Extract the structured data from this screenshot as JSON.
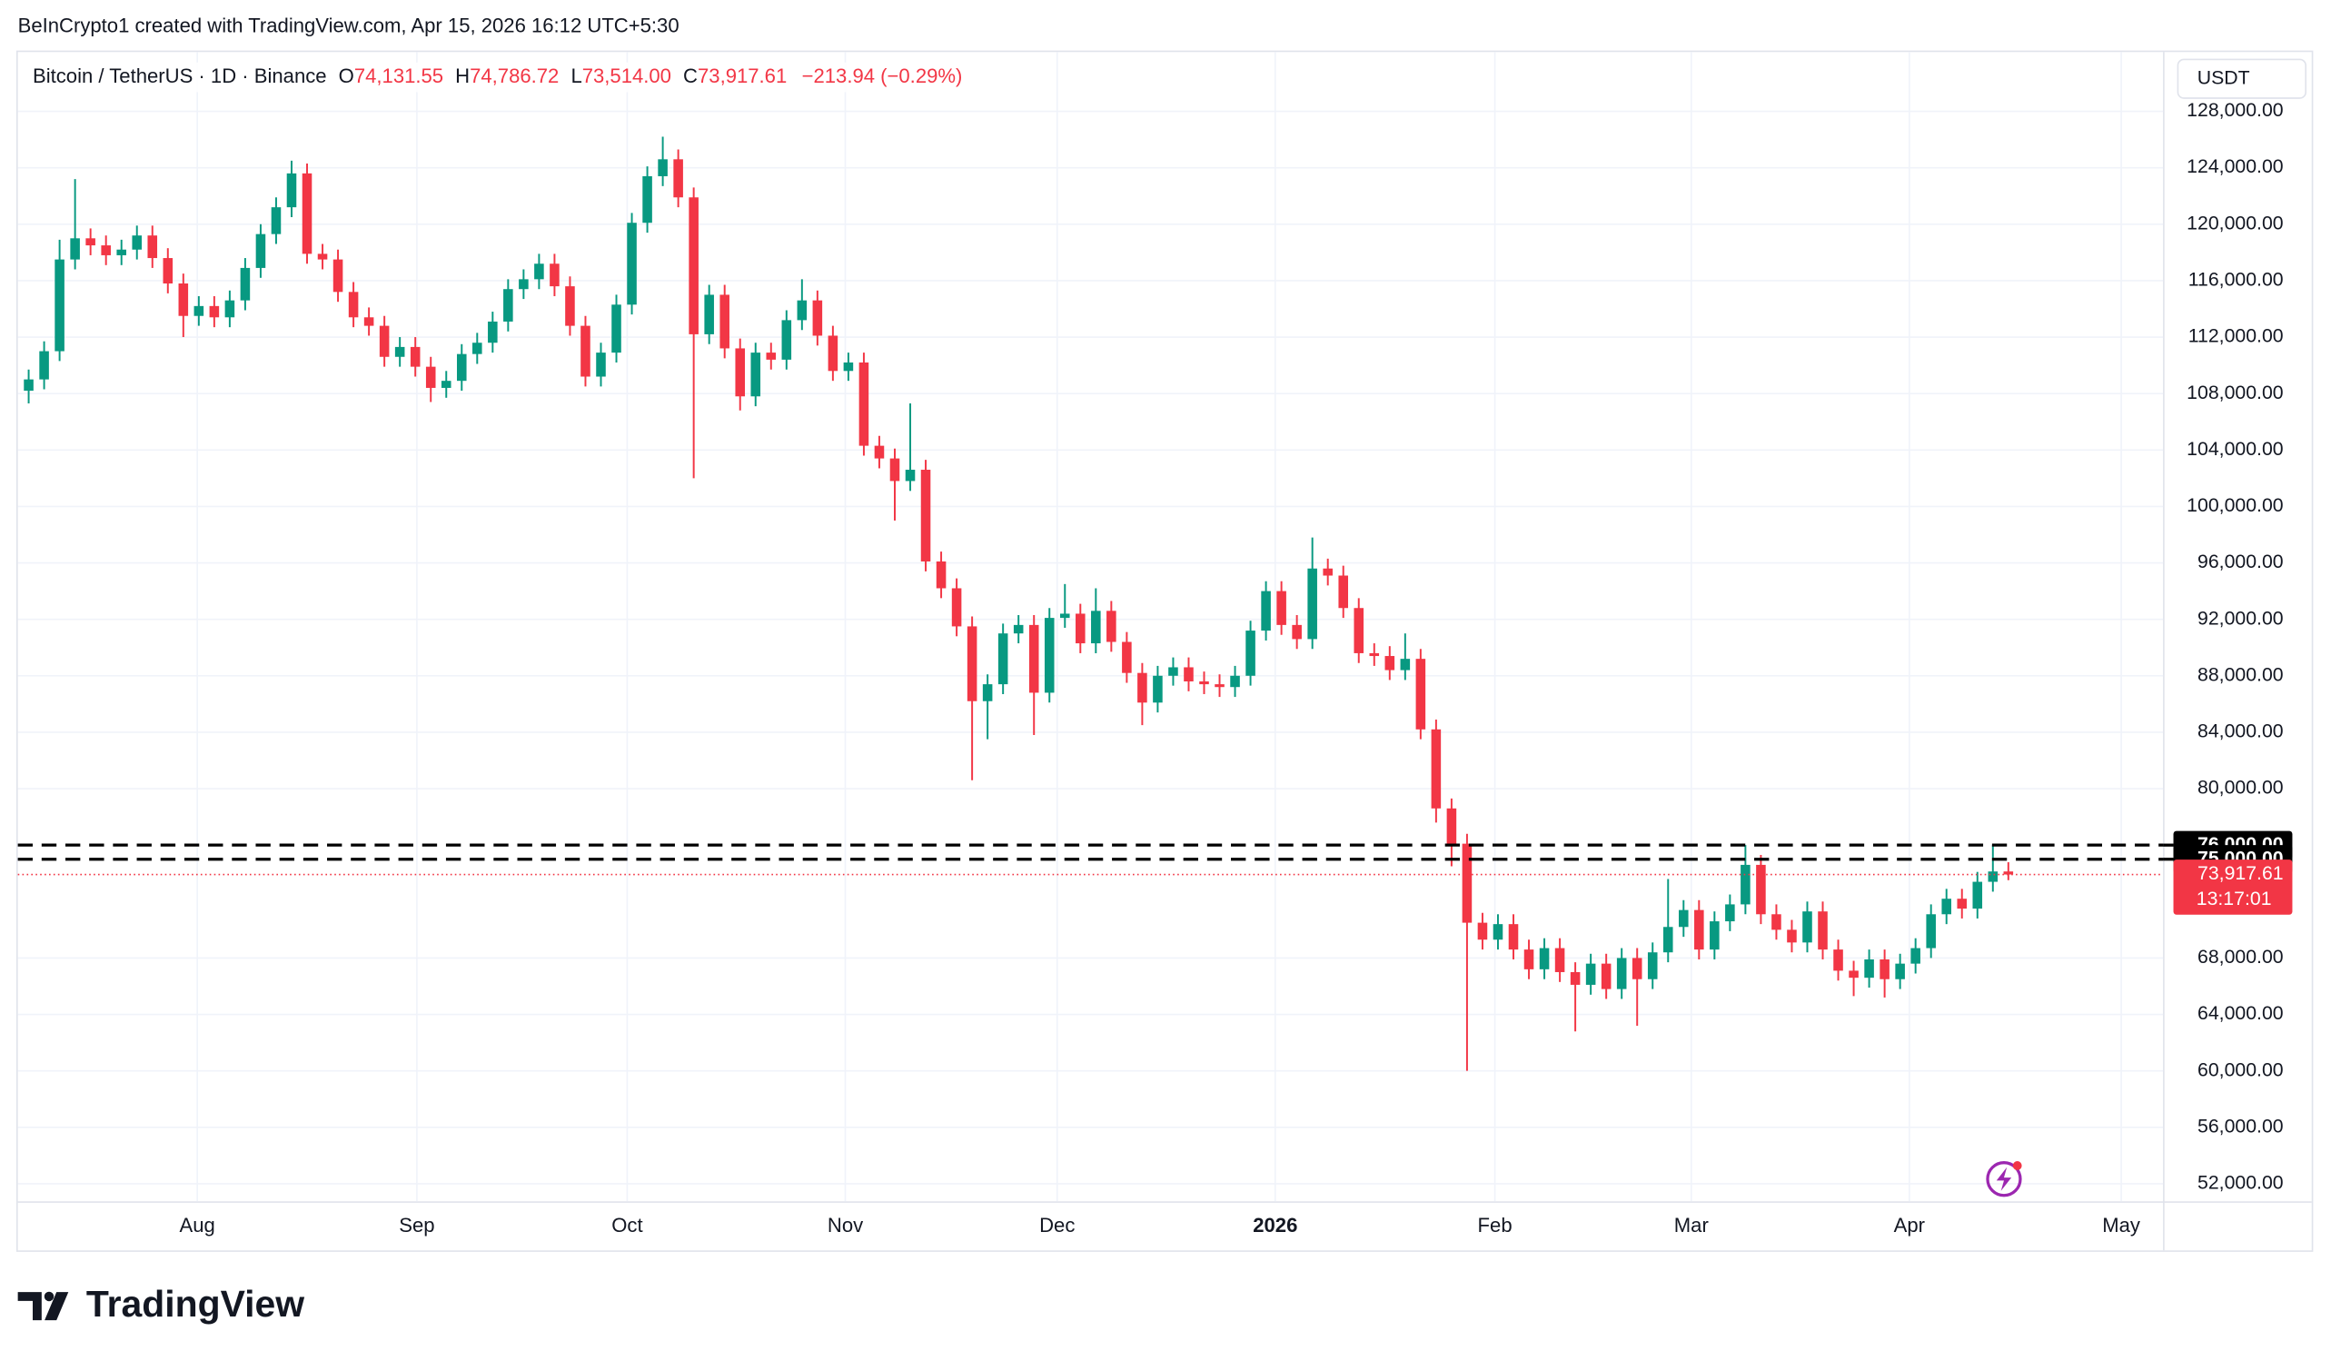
{
  "header": {
    "credit": "BeInCrypto1 created with TradingView.com, Apr 15, 2026 16:12 UTC+5:30"
  },
  "chart_data": {
    "type": "candlestick",
    "symbol": "Bitcoin / TetherUS · 1D · Binance",
    "ohlc_legend": [
      {
        "key": "O",
        "value": "74,131.55"
      },
      {
        "key": "H",
        "value": "74,786.72"
      },
      {
        "key": "L",
        "value": "73,514.00"
      },
      {
        "key": "C",
        "value": "73,917.61"
      }
    ],
    "change": "−213.94 (−0.29%)",
    "currency": "USDT",
    "open": [
      108200,
      109000,
      111000,
      117500,
      119000,
      118500,
      117800,
      118200,
      119200,
      117600,
      115800,
      113500,
      114200,
      113400,
      114600,
      116900,
      119300,
      121200,
      123600,
      117900,
      117500,
      115200,
      113400,
      112800,
      110600,
      111300,
      109900,
      108400,
      108900,
      110800,
      111600,
      113100,
      115400,
      116100,
      117200,
      115600,
      112800,
      109200,
      110900,
      114300,
      120100,
      123400,
      124600,
      121900,
      112200,
      115000,
      111200,
      107800,
      110900,
      110400,
      113200,
      114600,
      112100,
      109600,
      110200,
      104300,
      103400,
      101800,
      102600,
      96100,
      94200,
      91500,
      86200,
      87400,
      91000,
      91600,
      86800,
      92100,
      92400,
      90300,
      92600,
      90400,
      88200,
      86100,
      88000,
      88600,
      87600,
      87400,
      87200,
      88000,
      91200,
      94000,
      91600,
      90600,
      95600,
      95100,
      92800,
      89600,
      89400,
      88400,
      89200,
      84200,
      78600,
      76100,
      70500,
      69300,
      70400,
      68600,
      67200,
      68700,
      67000,
      66100,
      67600,
      65800,
      68000,
      66500,
      68400,
      70200,
      71400,
      68600,
      70600,
      71800,
      74600,
      71100,
      70000,
      69100,
      71300,
      68600,
      67100,
      66600,
      67900,
      66500,
      67600,
      68700,
      71100,
      72200,
      71500,
      73400,
      74131.55
    ],
    "high": [
      109700,
      111700,
      118900,
      123200,
      119700,
      119200,
      118900,
      119900,
      119900,
      118300,
      116500,
      114900,
      114900,
      115300,
      117600,
      120000,
      121900,
      124500,
      124300,
      118600,
      118200,
      115900,
      114100,
      113500,
      112000,
      112000,
      110600,
      109600,
      111500,
      112300,
      113800,
      116100,
      116800,
      117900,
      117900,
      116300,
      113500,
      111600,
      115000,
      120800,
      124100,
      126200,
      125300,
      122600,
      115700,
      115700,
      111900,
      111600,
      111600,
      113900,
      116100,
      115300,
      112800,
      110900,
      110900,
      105000,
      104100,
      107300,
      103300,
      96800,
      94900,
      92200,
      88100,
      91700,
      92300,
      92300,
      92800,
      94500,
      93100,
      94200,
      93300,
      91100,
      88900,
      88700,
      89300,
      89300,
      88300,
      88100,
      88700,
      91900,
      94700,
      94700,
      92300,
      97800,
      96300,
      95800,
      93500,
      90300,
      90100,
      91000,
      89900,
      84900,
      79300,
      76800,
      71200,
      71100,
      71100,
      69300,
      69400,
      69400,
      67700,
      68300,
      68300,
      68700,
      68700,
      69100,
      73600,
      72100,
      72100,
      71300,
      72500,
      76000,
      75300,
      71800,
      70700,
      72000,
      72000,
      69300,
      67800,
      68600,
      68600,
      68300,
      69400,
      71800,
      72900,
      72900,
      74100,
      76000,
      74786.72
    ],
    "low": [
      107300,
      108300,
      110300,
      116800,
      117800,
      117100,
      117100,
      117500,
      116900,
      115100,
      112000,
      112800,
      112700,
      112700,
      113900,
      116200,
      118600,
      120500,
      117200,
      116800,
      114500,
      112700,
      112100,
      109900,
      109900,
      109200,
      107400,
      107700,
      108200,
      110100,
      110900,
      112400,
      114700,
      115400,
      114900,
      112100,
      108500,
      108500,
      110200,
      113600,
      119400,
      122700,
      121200,
      102000,
      111500,
      110500,
      106800,
      107100,
      109700,
      109700,
      112500,
      111400,
      108900,
      108900,
      103600,
      102700,
      99000,
      101100,
      95400,
      93500,
      90800,
      80600,
      83500,
      86700,
      90300,
      83800,
      86100,
      91400,
      89600,
      89600,
      89700,
      87500,
      84500,
      85400,
      87300,
      86900,
      86700,
      86500,
      86500,
      87300,
      90500,
      90900,
      89900,
      89900,
      94400,
      92100,
      88900,
      88700,
      87700,
      87700,
      83500,
      77600,
      74500,
      60000,
      68600,
      68600,
      67900,
      66500,
      66500,
      66300,
      62800,
      65400,
      65100,
      65100,
      63200,
      65800,
      67700,
      69500,
      67900,
      67900,
      69900,
      71100,
      70400,
      69300,
      68400,
      68400,
      67900,
      66400,
      65300,
      65900,
      65200,
      65800,
      66900,
      68000,
      70400,
      70800,
      70800,
      72700,
      73514
    ],
    "close": [
      109000,
      111000,
      117500,
      119000,
      118500,
      117800,
      118200,
      119200,
      117600,
      115800,
      113500,
      114200,
      113400,
      114600,
      116900,
      119300,
      121200,
      123600,
      117900,
      117500,
      115200,
      113400,
      112800,
      110600,
      111300,
      109900,
      108400,
      108900,
      110800,
      111600,
      113100,
      115400,
      116100,
      117200,
      115600,
      112800,
      109200,
      110900,
      114300,
      120100,
      123400,
      124600,
      121900,
      112200,
      115000,
      111200,
      107800,
      110900,
      110400,
      113200,
      114600,
      112100,
      109600,
      110200,
      104300,
      103400,
      101800,
      102600,
      96100,
      94200,
      91500,
      86200,
      87400,
      91000,
      91600,
      86800,
      92100,
      92400,
      90300,
      92600,
      90400,
      88200,
      86100,
      88000,
      88600,
      87600,
      87400,
      87200,
      88000,
      91200,
      94000,
      91600,
      90600,
      95600,
      95100,
      92800,
      89600,
      89400,
      88400,
      89200,
      84200,
      78600,
      76100,
      70500,
      69300,
      70400,
      68600,
      67200,
      68700,
      67000,
      66100,
      67600,
      65800,
      68000,
      66500,
      68400,
      70200,
      71400,
      68600,
      70600,
      71800,
      74600,
      71100,
      70000,
      69100,
      71300,
      68600,
      67100,
      66600,
      67900,
      66500,
      67600,
      68700,
      71100,
      72200,
      71500,
      73400,
      74131.55,
      73917.61
    ],
    "up_color": "#089981",
    "down_color": "#f23645",
    "xlim": [
      -0.7,
      138
    ],
    "ylim": [
      51600,
      132200
    ],
    "xticks": [
      {
        "value": 10.9,
        "label": "Aug"
      },
      {
        "value": 25.1,
        "label": "Sep"
      },
      {
        "value": 38.7,
        "label": "Oct"
      },
      {
        "value": 52.8,
        "label": "Nov"
      },
      {
        "value": 66.5,
        "label": "Dec"
      },
      {
        "value": 80.6,
        "label": "2026"
      },
      {
        "value": 94.8,
        "label": "Feb"
      },
      {
        "value": 107.5,
        "label": "Mar"
      },
      {
        "value": 121.6,
        "label": "Apr"
      },
      {
        "value": 135.3,
        "label": "May"
      }
    ],
    "yticks": [
      {
        "value": 52000,
        "label": "52,000.00"
      },
      {
        "value": 56000,
        "label": "56,000.00"
      },
      {
        "value": 60000,
        "label": "60,000.00"
      },
      {
        "value": 64000,
        "label": "64,000.00"
      },
      {
        "value": 68000,
        "label": "68,000.00"
      },
      {
        "value": 80000,
        "label": "80,000.00"
      },
      {
        "value": 84000,
        "label": "84,000.00"
      },
      {
        "value": 88000,
        "label": "88,000.00"
      },
      {
        "value": 92000,
        "label": "92,000.00"
      },
      {
        "value": 96000,
        "label": "96,000.00"
      },
      {
        "value": 100000,
        "label": "100,000.00"
      },
      {
        "value": 104000,
        "label": "104,000.00"
      },
      {
        "value": 108000,
        "label": "108,000.00"
      },
      {
        "value": 112000,
        "label": "112,000.00"
      },
      {
        "value": 116000,
        "label": "116,000.00"
      },
      {
        "value": 120000,
        "label": "120,000.00"
      },
      {
        "value": 124000,
        "label": "124,000.00"
      },
      {
        "value": 128000,
        "label": "128,000.00"
      }
    ],
    "grid": true,
    "levels": [
      {
        "value": 76000,
        "label": "76,000.00"
      },
      {
        "value": 75000,
        "label": "75,000.00"
      }
    ],
    "last_price": {
      "value": 73917.61,
      "label": "73,917.61",
      "countdown": "13:17:01"
    }
  },
  "footer": {
    "logo": "TradingView"
  }
}
